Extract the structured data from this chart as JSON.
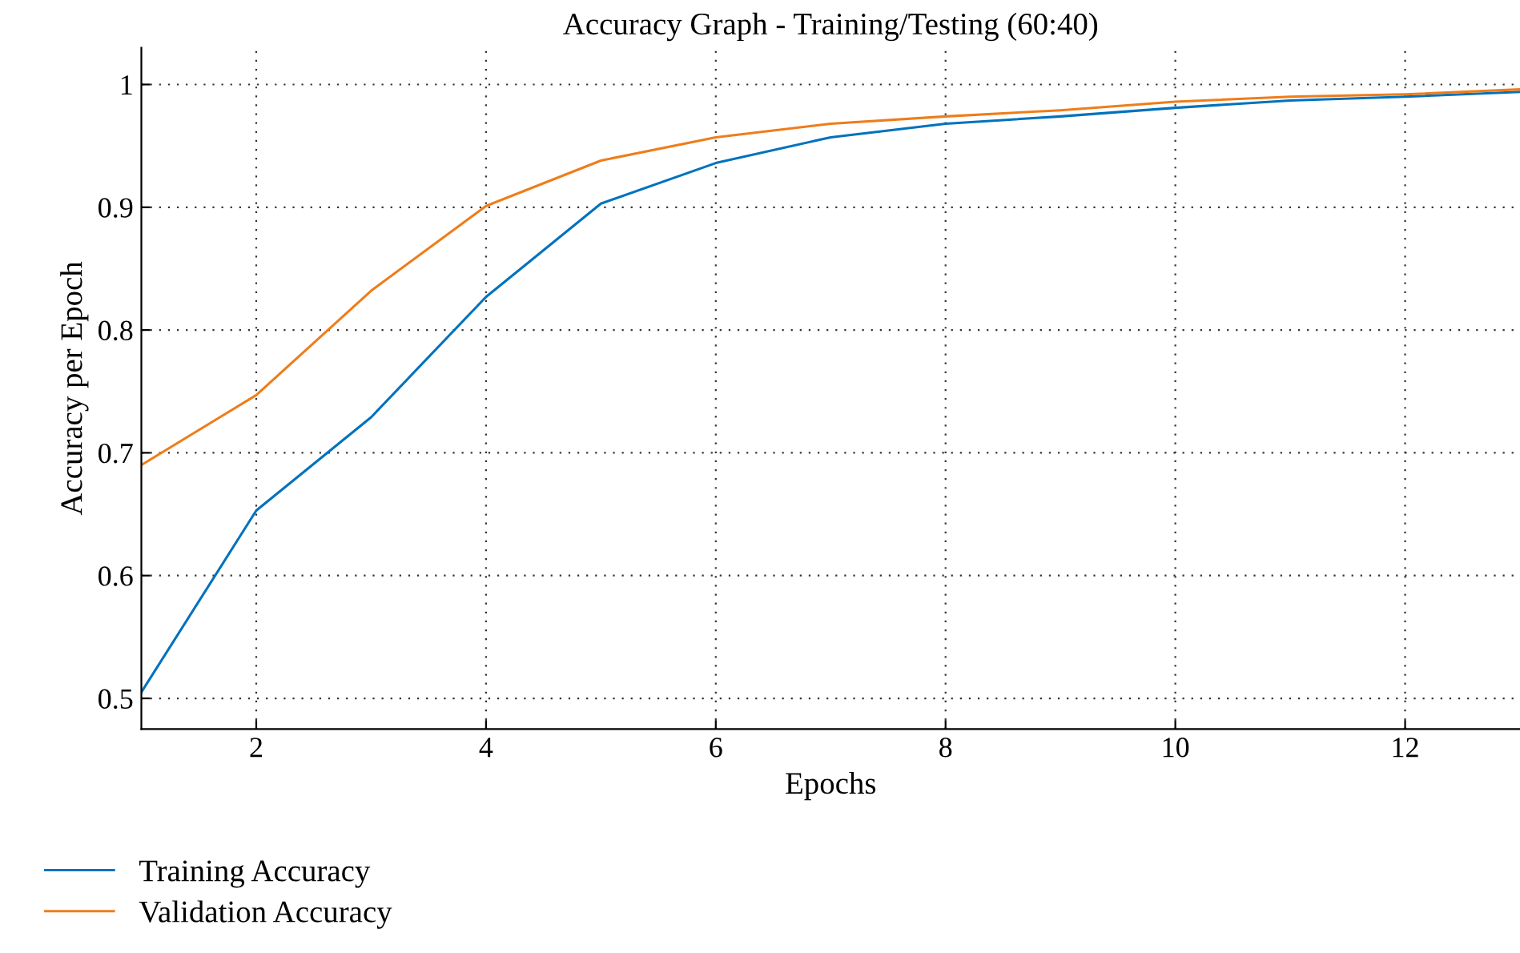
{
  "chart_data": {
    "type": "line",
    "title": "Accuracy Graph - Training/Testing (60:40)",
    "xlabel": "Epochs",
    "ylabel": "Accuracy per Epoch",
    "x": [
      1,
      2,
      3,
      4,
      5,
      6,
      7,
      8,
      9,
      10,
      11,
      12,
      13
    ],
    "series": [
      {
        "name": "Training Accuracy",
        "color": "#0072bd",
        "values": [
          0.505,
          0.653,
          0.729,
          0.827,
          0.903,
          0.936,
          0.957,
          0.968,
          0.974,
          0.981,
          0.987,
          0.99,
          0.994
        ]
      },
      {
        "name": "Validation Accuracy",
        "color": "#ee7d1a",
        "values": [
          0.69,
          0.747,
          0.832,
          0.901,
          0.938,
          0.957,
          0.968,
          0.974,
          0.979,
          0.986,
          0.99,
          0.992,
          0.996
        ]
      }
    ],
    "xlim": [
      1,
      13
    ],
    "ylim": [
      0.475,
      1.03
    ],
    "xticks": [
      2,
      4,
      6,
      8,
      10,
      12
    ],
    "yticks": [
      0.5,
      0.6,
      0.7,
      0.8,
      0.9,
      1
    ],
    "grid": true,
    "legend": "bottom left",
    "marker": "none",
    "line_style": "solid"
  }
}
